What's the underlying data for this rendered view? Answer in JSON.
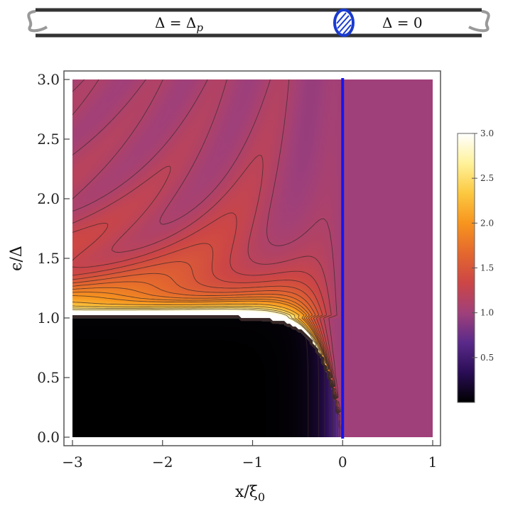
{
  "wire": {
    "left_label": "Δ = Δ",
    "left_sub": "p",
    "right_label": "Δ = 0"
  },
  "chart_data": {
    "type": "heatmap",
    "title": "",
    "xlabel": "x/ξ",
    "xlabel_sub": "0",
    "ylabel": "ϵ/Δ",
    "xlim": [
      -3,
      1
    ],
    "ylim": [
      0,
      3
    ],
    "x_ticks": [
      -3,
      -2,
      -1,
      0,
      1
    ],
    "x_tick_labels": [
      "−3",
      "−2",
      "−1",
      "0",
      "1"
    ],
    "y_ticks": [
      0.0,
      0.5,
      1.0,
      1.5,
      2.0,
      2.5,
      3.0
    ],
    "y_tick_labels": [
      "0.0",
      "0.5",
      "1.0",
      "1.5",
      "2.0",
      "2.5",
      "3.0"
    ],
    "interface_x": 0,
    "interface_color": "#1515ee",
    "value_range": [
      0,
      3
    ],
    "colorbar_ticks": [
      0.5,
      1.0,
      1.5,
      2.0,
      2.5,
      3.0
    ],
    "colorbar_tick_labels": [
      "0.5",
      "1.0",
      "1.5",
      "2.0",
      "2.5",
      "3.0"
    ],
    "colormap": [
      "#000000",
      "#2a0d55",
      "#5a2a8a",
      "#a0407a",
      "#cc4646",
      "#e4682e",
      "#f7951e",
      "#fcc840",
      "#fff29a",
      "#ffffff"
    ],
    "normal_region_value": 1.0,
    "contour_levels": [
      0.1,
      0.2,
      0.3,
      0.4,
      0.5,
      0.6,
      0.7,
      0.8,
      0.9,
      1.1,
      1.2,
      1.3,
      1.4,
      1.5,
      1.6,
      1.7,
      1.8,
      1.9,
      2.0,
      2.2,
      2.4,
      2.6,
      2.8
    ]
  }
}
